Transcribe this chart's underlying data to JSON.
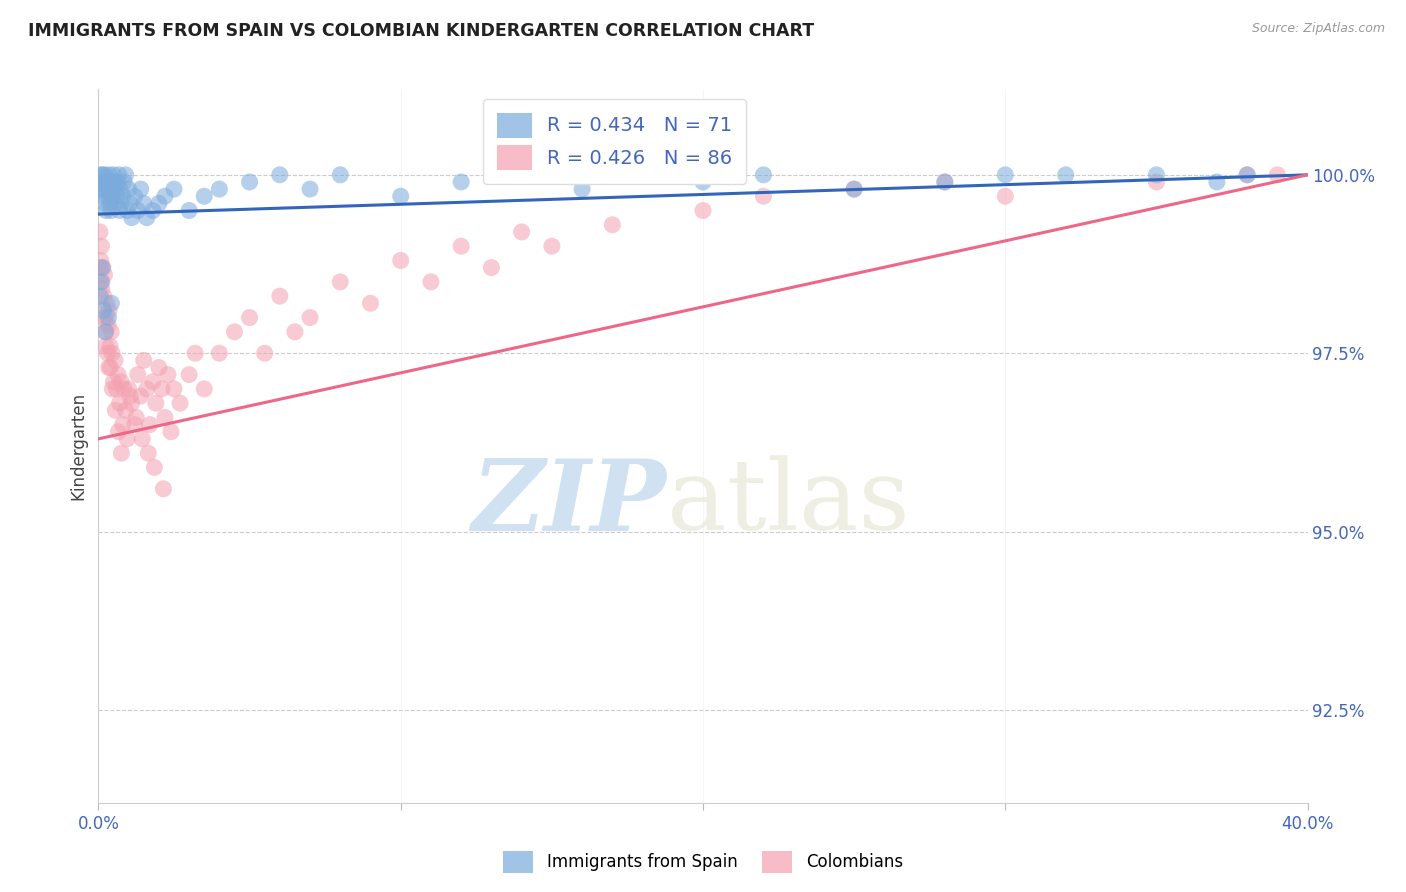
{
  "title": "IMMIGRANTS FROM SPAIN VS COLOMBIAN KINDERGARTEN CORRELATION CHART",
  "source": "Source: ZipAtlas.com",
  "ylabel": "Kindergarten",
  "ytick_values": [
    92.5,
    95.0,
    97.5,
    100.0
  ],
  "xmin": 0.0,
  "xmax": 40.0,
  "ymin": 91.2,
  "ymax": 101.2,
  "legend_r_blue": "R = 0.434",
  "legend_n_blue": "N = 71",
  "legend_r_pink": "R = 0.426",
  "legend_n_pink": "N = 86",
  "legend_label_blue": "Immigrants from Spain",
  "legend_label_pink": "Colombians",
  "blue_color": "#7AABDC",
  "pink_color": "#F4A0B0",
  "blue_line_color": "#3366BB",
  "pink_line_color": "#EE6688",
  "blue_scatter_x": [
    0.05,
    0.08,
    0.1,
    0.12,
    0.15,
    0.18,
    0.2,
    0.22,
    0.25,
    0.28,
    0.3,
    0.32,
    0.35,
    0.38,
    0.4,
    0.42,
    0.45,
    0.48,
    0.5,
    0.55,
    0.58,
    0.6,
    0.65,
    0.68,
    0.7,
    0.72,
    0.75,
    0.8,
    0.85,
    0.9,
    0.95,
    1.0,
    1.05,
    1.1,
    1.2,
    1.3,
    1.4,
    1.5,
    1.6,
    1.8,
    2.0,
    2.2,
    2.5,
    3.0,
    3.5,
    4.0,
    5.0,
    6.0,
    7.0,
    8.0,
    10.0,
    12.0,
    14.0,
    16.0,
    18.0,
    20.0,
    22.0,
    25.0,
    28.0,
    30.0,
    32.0,
    35.0,
    37.0,
    38.0,
    0.06,
    0.09,
    0.13,
    0.17,
    0.23,
    0.33,
    0.43
  ],
  "blue_scatter_y": [
    99.8,
    100.0,
    99.9,
    100.0,
    99.8,
    99.7,
    99.6,
    100.0,
    99.5,
    99.8,
    99.9,
    99.7,
    100.0,
    99.6,
    99.8,
    99.5,
    99.7,
    99.9,
    100.0,
    99.6,
    99.8,
    99.7,
    99.9,
    100.0,
    99.5,
    99.8,
    99.6,
    99.7,
    99.9,
    100.0,
    99.5,
    99.8,
    99.6,
    99.4,
    99.7,
    99.5,
    99.8,
    99.6,
    99.4,
    99.5,
    99.6,
    99.7,
    99.8,
    99.5,
    99.7,
    99.8,
    99.9,
    100.0,
    99.8,
    100.0,
    99.7,
    99.9,
    100.0,
    99.8,
    100.0,
    99.9,
    100.0,
    99.8,
    99.9,
    100.0,
    100.0,
    100.0,
    99.9,
    100.0,
    98.3,
    98.5,
    98.7,
    98.1,
    97.8,
    98.0,
    98.2
  ],
  "pink_scatter_x": [
    0.05,
    0.08,
    0.1,
    0.12,
    0.15,
    0.18,
    0.2,
    0.22,
    0.25,
    0.28,
    0.3,
    0.32,
    0.35,
    0.38,
    0.4,
    0.42,
    0.45,
    0.5,
    0.55,
    0.6,
    0.65,
    0.7,
    0.75,
    0.8,
    0.85,
    0.9,
    0.95,
    1.0,
    1.1,
    1.2,
    1.3,
    1.4,
    1.5,
    1.6,
    1.7,
    1.8,
    1.9,
    2.0,
    2.1,
    2.2,
    2.3,
    2.4,
    2.5,
    2.7,
    3.0,
    3.2,
    3.5,
    4.0,
    4.5,
    5.0,
    5.5,
    6.0,
    6.5,
    7.0,
    8.0,
    9.0,
    10.0,
    11.0,
    12.0,
    13.0,
    14.0,
    15.0,
    17.0,
    20.0,
    22.0,
    25.0,
    28.0,
    30.0,
    35.0,
    38.0,
    39.0,
    0.07,
    0.11,
    0.16,
    0.24,
    0.34,
    0.46,
    0.56,
    0.66,
    0.76,
    1.05,
    1.25,
    1.45,
    1.65,
    1.85,
    2.15
  ],
  "pink_scatter_y": [
    99.2,
    98.8,
    99.0,
    98.5,
    98.7,
    98.3,
    98.6,
    98.0,
    97.8,
    98.2,
    97.5,
    97.9,
    98.1,
    97.6,
    97.3,
    97.8,
    97.5,
    97.1,
    97.4,
    97.0,
    97.2,
    96.8,
    97.1,
    96.5,
    97.0,
    96.7,
    96.3,
    97.0,
    96.8,
    96.5,
    97.2,
    96.9,
    97.4,
    97.0,
    96.5,
    97.1,
    96.8,
    97.3,
    97.0,
    96.6,
    97.2,
    96.4,
    97.0,
    96.8,
    97.2,
    97.5,
    97.0,
    97.5,
    97.8,
    98.0,
    97.5,
    98.3,
    97.8,
    98.0,
    98.5,
    98.2,
    98.8,
    98.5,
    99.0,
    98.7,
    99.2,
    99.0,
    99.3,
    99.5,
    99.7,
    99.8,
    99.9,
    99.7,
    99.9,
    100.0,
    100.0,
    98.7,
    98.4,
    98.0,
    97.6,
    97.3,
    97.0,
    96.7,
    96.4,
    96.1,
    96.9,
    96.6,
    96.3,
    96.1,
    95.9,
    95.6
  ],
  "blue_trendline_x": [
    0.0,
    40.0
  ],
  "blue_trendline_y": [
    99.45,
    100.0
  ],
  "pink_trendline_x": [
    0.0,
    40.0
  ],
  "pink_trendline_y": [
    96.3,
    100.0
  ]
}
